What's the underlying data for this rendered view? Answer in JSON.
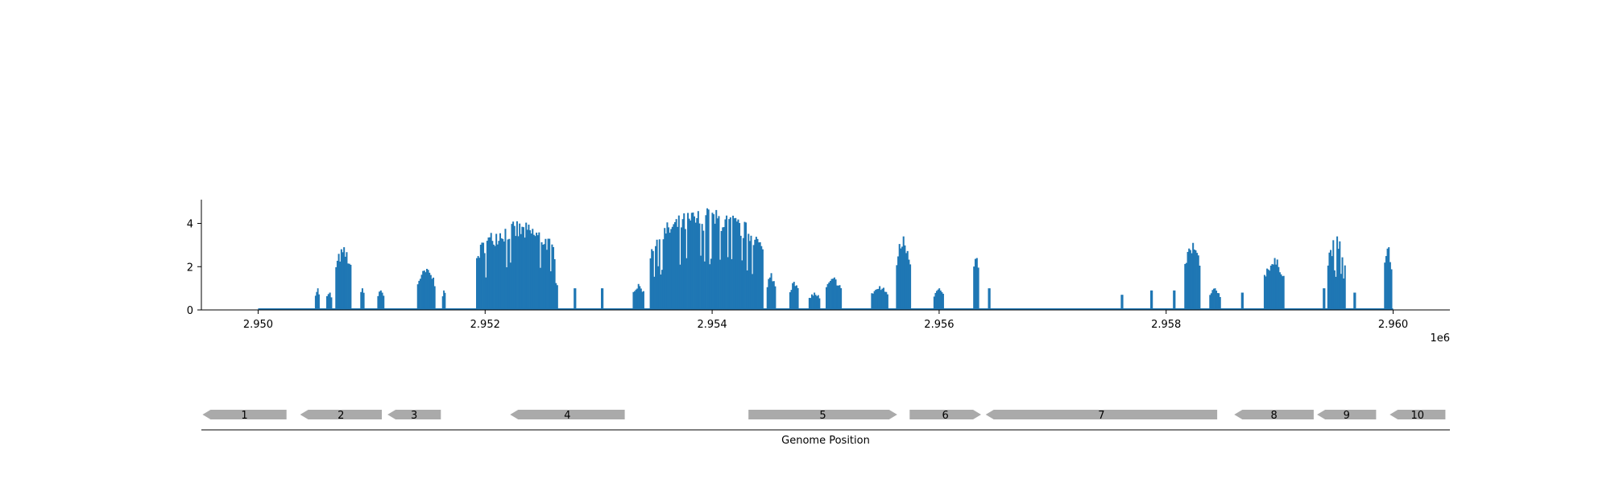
{
  "chart_data": [
    {
      "type": "bar",
      "panel": "coverage",
      "xlim": [
        2949500,
        2960500
      ],
      "ylim": [
        0,
        5.1
      ],
      "x_ticks": [
        2950000,
        2952000,
        2954000,
        2956000,
        2958000,
        2960000
      ],
      "x_tick_labels": [
        "2.950",
        "2.952",
        "2.954",
        "2.956",
        "2.958",
        "2.960"
      ],
      "x_offset_label": "1e6",
      "y_ticks": [
        0,
        2,
        4
      ],
      "y_tick_labels": [
        "0",
        "2",
        "4"
      ],
      "color": "#1f77b4",
      "baseline": [
        2950000,
        2960000
      ],
      "clusters": [
        {
          "start": 2950500,
          "end": 2950540,
          "max": 1.0
        },
        {
          "start": 2950600,
          "end": 2950650,
          "max": 0.8
        },
        {
          "start": 2950680,
          "end": 2950820,
          "max": 2.9
        },
        {
          "start": 2950900,
          "end": 2950935,
          "max": 1.0
        },
        {
          "start": 2951050,
          "end": 2951110,
          "max": 0.9
        },
        {
          "start": 2951400,
          "end": 2951560,
          "max": 1.9
        },
        {
          "start": 2951620,
          "end": 2951650,
          "max": 0.9
        },
        {
          "start": 2951920,
          "end": 2952640,
          "max": 4.1
        },
        {
          "start": 2952780,
          "end": 2952800,
          "max": 1.0
        },
        {
          "start": 2953020,
          "end": 2953040,
          "max": 1.0
        },
        {
          "start": 2953300,
          "end": 2953400,
          "max": 1.2
        },
        {
          "start": 2953450,
          "end": 2954450,
          "max": 4.7
        },
        {
          "start": 2954480,
          "end": 2954560,
          "max": 1.7
        },
        {
          "start": 2954680,
          "end": 2954760,
          "max": 1.3
        },
        {
          "start": 2954850,
          "end": 2954950,
          "max": 0.8
        },
        {
          "start": 2955000,
          "end": 2955140,
          "max": 1.5
        },
        {
          "start": 2955400,
          "end": 2955550,
          "max": 1.1
        },
        {
          "start": 2955620,
          "end": 2955750,
          "max": 3.4
        },
        {
          "start": 2955950,
          "end": 2956040,
          "max": 1.0
        },
        {
          "start": 2956300,
          "end": 2956350,
          "max": 2.4
        },
        {
          "start": 2956430,
          "end": 2956450,
          "max": 1.0
        },
        {
          "start": 2957600,
          "end": 2957620,
          "max": 0.7
        },
        {
          "start": 2957860,
          "end": 2957880,
          "max": 0.9
        },
        {
          "start": 2958060,
          "end": 2958080,
          "max": 0.9
        },
        {
          "start": 2958160,
          "end": 2958300,
          "max": 3.1
        },
        {
          "start": 2958380,
          "end": 2958480,
          "max": 1.0
        },
        {
          "start": 2958660,
          "end": 2958680,
          "max": 0.8
        },
        {
          "start": 2958860,
          "end": 2959040,
          "max": 2.4
        },
        {
          "start": 2959380,
          "end": 2959400,
          "max": 1.0
        },
        {
          "start": 2959420,
          "end": 2959580,
          "max": 3.4
        },
        {
          "start": 2959650,
          "end": 2959670,
          "max": 0.8
        },
        {
          "start": 2959920,
          "end": 2959990,
          "max": 2.9
        }
      ]
    },
    {
      "type": "gene_track",
      "panel": "genes",
      "xlim": [
        2949500,
        2960500
      ],
      "xlabel": "Genome Position",
      "color": "#aaaaaa",
      "genes": [
        {
          "label": "1",
          "start": 2949510,
          "end": 2950250,
          "strand": "-"
        },
        {
          "label": "2",
          "start": 2950370,
          "end": 2951090,
          "strand": "-"
        },
        {
          "label": "3",
          "start": 2951140,
          "end": 2951610,
          "strand": "-"
        },
        {
          "label": "4",
          "start": 2952220,
          "end": 2953230,
          "strand": "-"
        },
        {
          "label": "5",
          "start": 2954320,
          "end": 2955630,
          "strand": "+"
        },
        {
          "label": "6",
          "start": 2955740,
          "end": 2956370,
          "strand": "+"
        },
        {
          "label": "7",
          "start": 2956410,
          "end": 2958450,
          "strand": "-"
        },
        {
          "label": "8",
          "start": 2958600,
          "end": 2959300,
          "strand": "-"
        },
        {
          "label": "9",
          "start": 2959330,
          "end": 2959850,
          "strand": "-"
        },
        {
          "label": "10",
          "start": 2959970,
          "end": 2960460,
          "strand": "-"
        }
      ]
    }
  ]
}
